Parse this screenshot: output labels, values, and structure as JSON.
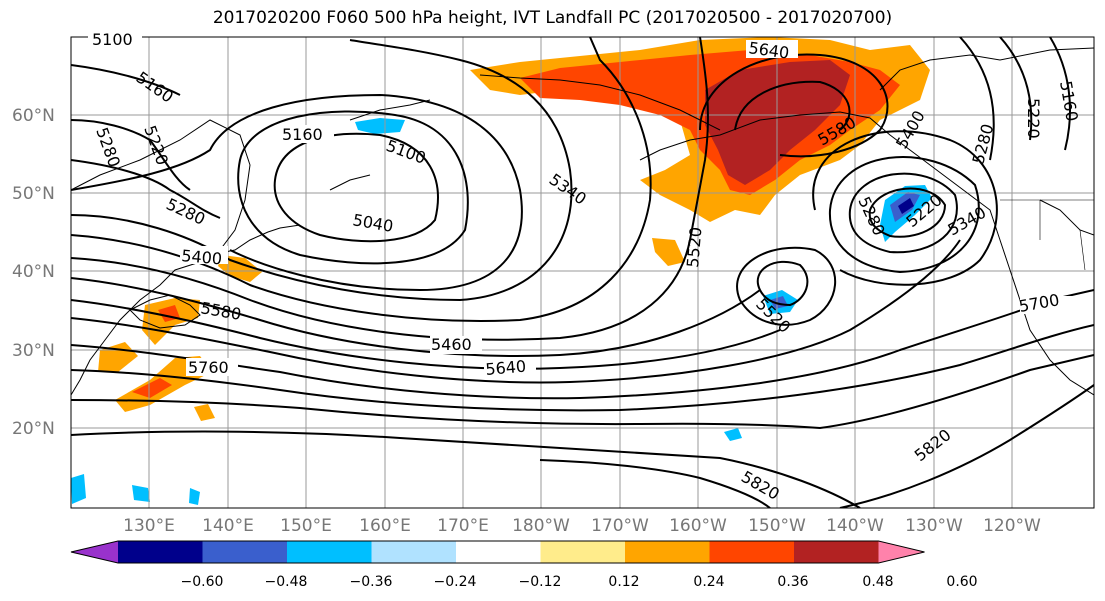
{
  "title": "2017020200 F060 500 hPa height, IVT Landfall PC (2017020500 - 2017020700)",
  "map": {
    "projection": "cylindrical",
    "lon_labels": [
      "130°E",
      "140°E",
      "150°E",
      "160°E",
      "170°E",
      "180°W",
      "170°W",
      "160°W",
      "150°W",
      "140°W",
      "130°W",
      "120°W"
    ],
    "lat_labels": [
      "60°N",
      "50°N",
      "40°N",
      "30°N",
      "20°N"
    ],
    "contour_labels": [
      "5100",
      "5160",
      "5280",
      "5220",
      "5160",
      "5100",
      "5280",
      "5340",
      "5040",
      "5400",
      "5580",
      "5760",
      "5460",
      "5640",
      "5520",
      "5640",
      "5580",
      "5400",
      "5280",
      "5220",
      "5340",
      "5280",
      "5220",
      "5160",
      "5520",
      "5700",
      "5820",
      "5820"
    ],
    "shading": "IVT Landfall PC",
    "colors": {
      "coast": "#000000",
      "contour": "#000000",
      "grid": "#999999"
    }
  },
  "colorbar": {
    "ticks": [
      "−0.60",
      "−0.48",
      "−0.36",
      "−0.24",
      "−0.12",
      "0.12",
      "0.24",
      "0.36",
      "0.48",
      "0.60"
    ],
    "colors": [
      "#9932cc",
      "#00008b",
      "#3a5fcd",
      "#00bfff",
      "#b0e2ff",
      "#ffffff",
      "#ffec8b",
      "#ffa500",
      "#ff4500",
      "#b22222",
      "#ff82ab"
    ]
  }
}
